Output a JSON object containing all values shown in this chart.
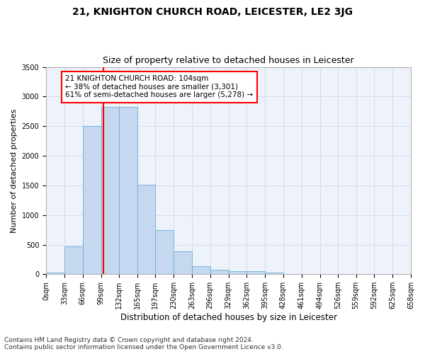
{
  "title": "21, KNIGHTON CHURCH ROAD, LEICESTER, LE2 3JG",
  "subtitle": "Size of property relative to detached houses in Leicester",
  "xlabel": "Distribution of detached houses by size in Leicester",
  "ylabel": "Number of detached properties",
  "bar_color": "#c5d8f0",
  "bar_edge_color": "#6aaed6",
  "bar_heights": [
    30,
    470,
    2500,
    2820,
    2820,
    1510,
    750,
    390,
    140,
    75,
    55,
    55,
    30,
    10,
    5,
    3,
    2,
    1,
    0,
    0
  ],
  "bin_edges": [
    0,
    33,
    66,
    99,
    132,
    165,
    197,
    230,
    263,
    296,
    329,
    362,
    395,
    428,
    461,
    494,
    526,
    559,
    592,
    625,
    658
  ],
  "bin_labels": [
    "0sqm",
    "33sqm",
    "66sqm",
    "99sqm",
    "132sqm",
    "165sqm",
    "197sqm",
    "230sqm",
    "263sqm",
    "296sqm",
    "329sqm",
    "362sqm",
    "395sqm",
    "428sqm",
    "461sqm",
    "494sqm",
    "526sqm",
    "559sqm",
    "592sqm",
    "625sqm",
    "658sqm"
  ],
  "vline_x": 104,
  "vline_color": "red",
  "annotation_text": "21 KNIGHTON CHURCH ROAD: 104sqm\n← 38% of detached houses are smaller (3,301)\n61% of semi-detached houses are larger (5,278) →",
  "annotation_box_color": "white",
  "annotation_box_edgecolor": "red",
  "ylim": [
    0,
    3500
  ],
  "yticks": [
    0,
    500,
    1000,
    1500,
    2000,
    2500,
    3000,
    3500
  ],
  "grid_color": "#d0d8ee",
  "bg_color": "#eef2fa",
  "footer_line1": "Contains HM Land Registry data © Crown copyright and database right 2024.",
  "footer_line2": "Contains public sector information licensed under the Open Government Licence v3.0.",
  "title_fontsize": 10,
  "subtitle_fontsize": 9,
  "annotation_fontsize": 7.5,
  "footer_fontsize": 6.5,
  "ylabel_fontsize": 8,
  "xlabel_fontsize": 8.5,
  "tick_fontsize": 7
}
